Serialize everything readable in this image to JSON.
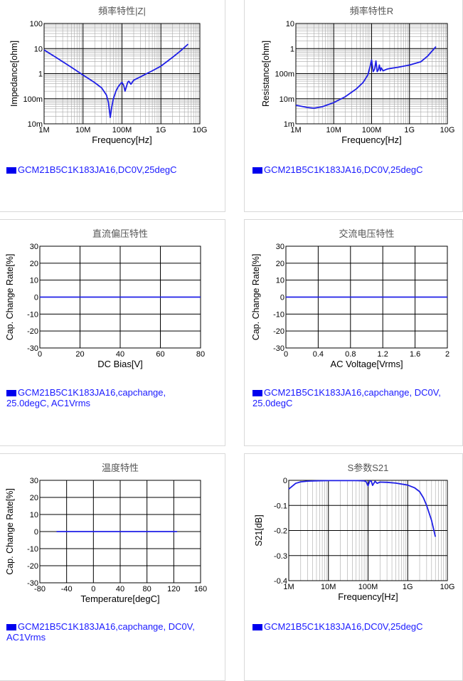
{
  "colors": {
    "series": "#1f1fe6",
    "grid_major": "#000000",
    "grid_minor": "#a8a8a8",
    "legend_text": "#1a1aff",
    "title": "#555555"
  },
  "charts": [
    {
      "id": "impedance",
      "chart_data": {
        "type": "line",
        "title": "頻率特性|Z|",
        "xlabel": "Frequency[Hz]",
        "ylabel": "Impedance[ohm]",
        "xscale": "log",
        "yscale": "log",
        "xlim": [
          1000000,
          10000000000
        ],
        "ylim": [
          0.01,
          100
        ],
        "xticks": [
          {
            "v": 1000000,
            "t": "1M"
          },
          {
            "v": 10000000,
            "t": "10M"
          },
          {
            "v": 100000000,
            "t": "100M"
          },
          {
            "v": 1000000000,
            "t": "1G"
          },
          {
            "v": 10000000000,
            "t": "10G"
          }
        ],
        "yticks": [
          {
            "v": 0.01,
            "t": "10m"
          },
          {
            "v": 0.1,
            "t": "100m"
          },
          {
            "v": 1,
            "t": "1"
          },
          {
            "v": 10,
            "t": "10"
          },
          {
            "v": 100,
            "t": "100"
          }
        ],
        "series": [
          {
            "name": "GCM21B5C1K183JA16,DC0V,25degC",
            "x": [
              1000000,
              2000000,
              5000000,
              10000000,
              20000000,
              30000000,
              40000000,
              45000000,
              50000000,
              55000000,
              60000000,
              70000000,
              80000000,
              90000000,
              100000000,
              110000000,
              120000000,
              130000000,
              140000000,
              150000000,
              170000000,
              200000000,
              250000000,
              300000000,
              400000000,
              600000000,
              1000000000,
              2000000000,
              3000000000,
              5000000000
            ],
            "y": [
              8.8,
              4.5,
              1.8,
              0.88,
              0.44,
              0.27,
              0.14,
              0.07,
              0.018,
              0.05,
              0.1,
              0.2,
              0.3,
              0.38,
              0.45,
              0.35,
              0.2,
              0.3,
              0.45,
              0.5,
              0.38,
              0.55,
              0.65,
              0.75,
              0.95,
              1.3,
              2.0,
              4.5,
              7.5,
              15
            ]
          }
        ]
      },
      "legend": "GCM21B5C1K183JA16,DC0V,25degC"
    },
    {
      "id": "resistance",
      "chart_data": {
        "type": "line",
        "title": "頻率特性R",
        "xlabel": "Frequency[Hz]",
        "ylabel": "Resistance[ohm]",
        "xscale": "log",
        "yscale": "log",
        "xlim": [
          1000000,
          10000000000
        ],
        "ylim": [
          0.001,
          10
        ],
        "xticks": [
          {
            "v": 1000000,
            "t": "1M"
          },
          {
            "v": 10000000,
            "t": "10M"
          },
          {
            "v": 100000000,
            "t": "100M"
          },
          {
            "v": 1000000000,
            "t": "1G"
          },
          {
            "v": 10000000000,
            "t": "10G"
          }
        ],
        "yticks": [
          {
            "v": 0.001,
            "t": "1m"
          },
          {
            "v": 0.01,
            "t": "10m"
          },
          {
            "v": 0.1,
            "t": "100m"
          },
          {
            "v": 1,
            "t": "1"
          },
          {
            "v": 10,
            "t": "10"
          }
        ],
        "series": [
          {
            "name": "GCM21B5C1K183JA16,DC0V,25degC",
            "x": [
              1000000,
              2000000,
              3000000,
              5000000,
              10000000,
              20000000,
              40000000,
              60000000,
              80000000,
              90000000,
              100000000,
              110000000,
              120000000,
              130000000,
              140000000,
              150000000,
              160000000,
              170000000,
              180000000,
              200000000,
              250000000,
              300000000,
              500000000,
              1000000000,
              2000000000,
              3000000000,
              5000000000
            ],
            "y": [
              0.0055,
              0.0045,
              0.0042,
              0.0048,
              0.007,
              0.012,
              0.025,
              0.045,
              0.09,
              0.18,
              0.35,
              0.12,
              0.15,
              0.32,
              0.12,
              0.14,
              0.22,
              0.13,
              0.17,
              0.13,
              0.15,
              0.16,
              0.18,
              0.22,
              0.3,
              0.5,
              1.2
            ]
          }
        ]
      },
      "legend": "GCM21B5C1K183JA16,DC0V,25degC"
    },
    {
      "id": "dcbias",
      "chart_data": {
        "type": "line",
        "title": "直流偏压特性",
        "xlabel": "DC Bias[V]",
        "ylabel": "Cap. Change Rate[%]",
        "xscale": "linear",
        "yscale": "linear",
        "xlim": [
          0,
          80
        ],
        "ylim": [
          -30,
          30
        ],
        "xticks": [
          {
            "v": 0,
            "t": "0"
          },
          {
            "v": 20,
            "t": "20"
          },
          {
            "v": 40,
            "t": "40"
          },
          {
            "v": 60,
            "t": "60"
          },
          {
            "v": 80,
            "t": "80"
          }
        ],
        "yticks": [
          {
            "v": 30,
            "t": "30"
          },
          {
            "v": 20,
            "t": "20"
          },
          {
            "v": 10,
            "t": "10"
          },
          {
            "v": 0,
            "t": "0"
          },
          {
            "v": -10,
            "t": "-10"
          },
          {
            "v": -20,
            "t": "-20"
          },
          {
            "v": -30,
            "t": "-30"
          }
        ],
        "series": [
          {
            "name": "GCM21B5C1K183JA16,capchange, 25.0degC, AC1Vrms",
            "x": [
              0,
              80
            ],
            "y": [
              0,
              0
            ]
          }
        ]
      },
      "legend": "GCM21B5C1K183JA16,capchange,\n25.0degC, AC1Vrms"
    },
    {
      "id": "acvoltage",
      "chart_data": {
        "type": "line",
        "title": "交流电压特性",
        "xlabel": "AC Voltage[Vrms]",
        "ylabel": "Cap. Change Rate[%]",
        "xscale": "linear",
        "yscale": "linear",
        "xlim": [
          0,
          2
        ],
        "ylim": [
          -30,
          30
        ],
        "xticks": [
          {
            "v": 0,
            "t": "0"
          },
          {
            "v": 0.4,
            "t": "0.4"
          },
          {
            "v": 0.8,
            "t": "0.8"
          },
          {
            "v": 1.2,
            "t": "1.2"
          },
          {
            "v": 1.6,
            "t": "1.6"
          },
          {
            "v": 2,
            "t": "2"
          }
        ],
        "yticks": [
          {
            "v": 30,
            "t": "30"
          },
          {
            "v": 20,
            "t": "20"
          },
          {
            "v": 10,
            "t": "10"
          },
          {
            "v": 0,
            "t": "0"
          },
          {
            "v": -10,
            "t": "-10"
          },
          {
            "v": -20,
            "t": "-20"
          },
          {
            "v": -30,
            "t": "-30"
          }
        ],
        "series": [
          {
            "name": "GCM21B5C1K183JA16,capchange, DC0V, 25.0degC",
            "x": [
              0,
              2
            ],
            "y": [
              0,
              0
            ]
          }
        ]
      },
      "legend": "GCM21B5C1K183JA16,capchange, DC0V,\n25.0degC"
    },
    {
      "id": "temperature",
      "chart_data": {
        "type": "line",
        "title": "温度特性",
        "xlabel": "Temperature[degC]",
        "ylabel": "Cap. Change Rate[%]",
        "xscale": "linear",
        "yscale": "linear",
        "xlim": [
          -80,
          160
        ],
        "ylim": [
          -30,
          30
        ],
        "xticks": [
          {
            "v": -80,
            "t": "-80"
          },
          {
            "v": -40,
            "t": "-40"
          },
          {
            "v": 0,
            "t": "0"
          },
          {
            "v": 40,
            "t": "40"
          },
          {
            "v": 80,
            "t": "80"
          },
          {
            "v": 120,
            "t": "120"
          },
          {
            "v": 160,
            "t": "160"
          }
        ],
        "yticks": [
          {
            "v": 30,
            "t": "30"
          },
          {
            "v": 20,
            "t": "20"
          },
          {
            "v": 10,
            "t": "10"
          },
          {
            "v": 0,
            "t": "0"
          },
          {
            "v": -10,
            "t": "-10"
          },
          {
            "v": -20,
            "t": "-20"
          },
          {
            "v": -30,
            "t": "-30"
          }
        ],
        "series": [
          {
            "name": "GCM21B5C1K183JA16,capchange, DC0V, AC1Vrms",
            "x": [
              -55,
              125
            ],
            "y": [
              0,
              0
            ]
          }
        ]
      },
      "legend": "GCM21B5C1K183JA16,capchange, DC0V,\nAC1Vrms"
    },
    {
      "id": "s21",
      "chart_data": {
        "type": "line",
        "title": "S参数S21",
        "xlabel": "Frequency[Hz]",
        "ylabel": "S21[dB]",
        "xscale": "log",
        "yscale": "linear",
        "xlim": [
          1000000,
          10000000000
        ],
        "ylim": [
          -0.4,
          0
        ],
        "xticks": [
          {
            "v": 1000000,
            "t": "1M"
          },
          {
            "v": 10000000,
            "t": "10M"
          },
          {
            "v": 100000000,
            "t": "100M"
          },
          {
            "v": 1000000000,
            "t": "1G"
          },
          {
            "v": 10000000000,
            "t": "10G"
          }
        ],
        "yticks": [
          {
            "v": 0,
            "t": "0"
          },
          {
            "v": -0.1,
            "t": "-0.1"
          },
          {
            "v": -0.2,
            "t": "-0.2"
          },
          {
            "v": -0.3,
            "t": "-0.3"
          },
          {
            "v": -0.4,
            "t": "-0.4"
          }
        ],
        "series": [
          {
            "name": "GCM21B5C1K183JA16,DC0V,25degC",
            "x": [
              1000000,
              1500000,
              2000000,
              3000000,
              5000000,
              10000000,
              20000000,
              50000000,
              80000000,
              90000000,
              100000000,
              110000000,
              120000000,
              130000000,
              150000000,
              170000000,
              200000000,
              300000000,
              500000000,
              1000000000,
              1500000000,
              2000000000,
              2500000000,
              3000000000,
              4000000000,
              5000000000
            ],
            "y": [
              -0.035,
              -0.012,
              -0.006,
              -0.003,
              -0.002,
              -0.001,
              -0.001,
              -0.001,
              -0.002,
              -0.006,
              -0.022,
              -0.003,
              -0.002,
              -0.02,
              -0.004,
              -0.012,
              -0.007,
              -0.008,
              -0.011,
              -0.019,
              -0.03,
              -0.045,
              -0.07,
              -0.1,
              -0.16,
              -0.225
            ]
          }
        ]
      },
      "legend": "GCM21B5C1K183JA16,DC0V,25degC"
    }
  ]
}
